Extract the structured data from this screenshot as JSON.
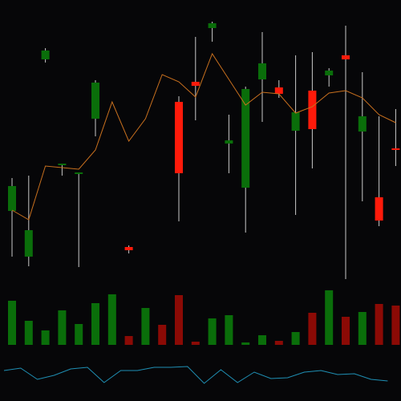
{
  "chart_data": {
    "type": "candlestick",
    "up_color": "#0a6e0a",
    "down_color": "#ff1a0a",
    "wick_color": "#c8c8c8",
    "ylim": [
      0,
      350
    ],
    "open": [
      87,
      30,
      276,
      145,
      134,
      202,
      null,
      42,
      null,
      null,
      223,
      248,
      315,
      171,
      116,
      251,
      241,
      187,
      237,
      256,
      281,
      186,
      104,
      165
    ],
    "high": [
      128,
      131,
      290,
      146,
      135,
      250,
      null,
      44,
      null,
      null,
      230,
      304,
      323,
      207,
      242,
      310,
      250,
      281,
      285,
      265,
      318,
      260,
      205,
      214
    ],
    "low": [
      30,
      18,
      272,
      131,
      17,
      180,
      null,
      34,
      null,
      null,
      74,
      200,
      298,
      134,
      60,
      198,
      228,
      82,
      140,
      242,
      2,
      99,
      68,
      143
    ],
    "close": [
      118,
      63,
      287,
      146,
      135,
      247,
      null,
      38,
      null,
      null,
      134,
      243,
      321,
      175,
      239,
      271,
      233,
      210,
      189,
      262,
      276,
      205,
      75,
      163
    ],
    "ma": {
      "color": "#c8701e",
      "values": [
        88,
        76,
        143,
        141,
        139,
        163,
        223,
        174,
        202,
        257,
        248,
        229,
        283,
        251,
        219,
        235,
        233,
        209,
        217,
        234,
        237,
        228,
        207,
        197
      ]
    },
    "volume": {
      "lim": [
        0,
        70
      ],
      "up_color": "#0a6e0a",
      "down_color": "#8b0a05",
      "values": [
        55,
        30,
        18,
        43,
        26,
        52,
        63,
        11,
        46,
        25,
        62,
        4,
        33,
        37,
        3,
        12,
        5,
        16,
        40,
        68,
        35,
        41,
        51,
        49
      ],
      "direction": [
        "up",
        "up",
        "up",
        "up",
        "up",
        "up",
        "up",
        "down",
        "up",
        "down",
        "down",
        "down",
        "up",
        "up",
        "up",
        "up",
        "down",
        "up",
        "down",
        "up",
        "down",
        "up",
        "down",
        "down"
      ]
    },
    "indicator": {
      "lim": [
        0,
        30
      ],
      "color": "#1f8fb4",
      "values": [
        18,
        21,
        7,
        12,
        20,
        22,
        3,
        18,
        18,
        22,
        22,
        23,
        2,
        19,
        3,
        16,
        8,
        9,
        16,
        18,
        13,
        14,
        7,
        5
      ]
    }
  }
}
